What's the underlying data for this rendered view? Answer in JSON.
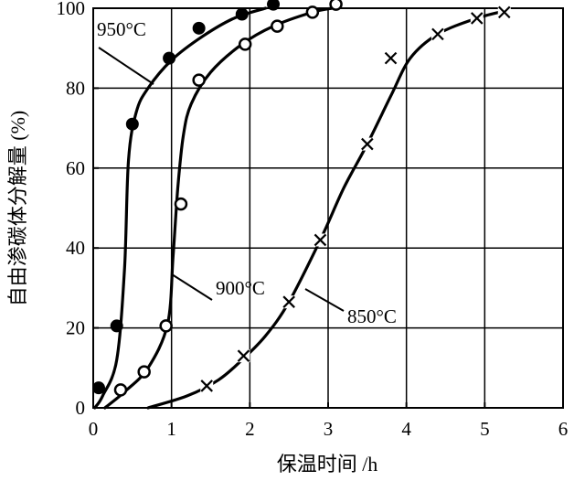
{
  "chart_data": {
    "type": "line",
    "xlabel": "保温时间 /h",
    "ylabel": "自由渗碳体分解量 (%)",
    "xlim": [
      0,
      6
    ],
    "ylim": [
      0,
      100
    ],
    "xticks": [
      "0",
      "1",
      "2",
      "3",
      "4",
      "5",
      "6"
    ],
    "yticks": [
      "0",
      "20",
      "40",
      "60",
      "80",
      "100"
    ],
    "grid": true,
    "series": [
      {
        "name": "950°C",
        "marker": "filled-circle",
        "points": [
          [
            0.07,
            5
          ],
          [
            0.3,
            20.5
          ],
          [
            0.5,
            71
          ],
          [
            0.97,
            87.5
          ],
          [
            1.35,
            95
          ],
          [
            1.9,
            98.5
          ],
          [
            2.3,
            101
          ]
        ],
        "curve": [
          [
            0.02,
            0
          ],
          [
            0.12,
            3
          ],
          [
            0.3,
            12
          ],
          [
            0.4,
            35
          ],
          [
            0.45,
            62
          ],
          [
            0.55,
            74
          ],
          [
            0.7,
            80
          ],
          [
            1.0,
            87
          ],
          [
            1.4,
            93
          ],
          [
            1.8,
            97.5
          ],
          [
            2.2,
            100
          ]
        ]
      },
      {
        "name": "900°C",
        "marker": "open-circle",
        "points": [
          [
            0.35,
            4.5
          ],
          [
            0.65,
            9
          ],
          [
            0.93,
            20.5
          ],
          [
            1.35,
            82
          ],
          [
            1.12,
            51
          ],
          [
            1.94,
            91
          ],
          [
            2.35,
            95.5
          ],
          [
            2.8,
            99
          ],
          [
            3.1,
            101
          ]
        ],
        "curve": [
          [
            0.15,
            0
          ],
          [
            0.4,
            4
          ],
          [
            0.7,
            10
          ],
          [
            0.95,
            21
          ],
          [
            1.02,
            38
          ],
          [
            1.08,
            55
          ],
          [
            1.15,
            68
          ],
          [
            1.25,
            76
          ],
          [
            1.5,
            84
          ],
          [
            1.9,
            91
          ],
          [
            2.3,
            95.5
          ],
          [
            2.8,
            99
          ],
          [
            3.05,
            100
          ]
        ]
      },
      {
        "name": "850°C",
        "marker": "x",
        "points": [
          [
            1.45,
            5.5
          ],
          [
            1.92,
            13
          ],
          [
            2.5,
            26.5
          ],
          [
            2.9,
            42
          ],
          [
            3.5,
            66
          ],
          [
            3.8,
            87.5
          ],
          [
            4.4,
            93.5
          ],
          [
            4.9,
            97.5
          ],
          [
            5.25,
            99
          ]
        ],
        "curve": [
          [
            0.7,
            0
          ],
          [
            1.2,
            3
          ],
          [
            1.6,
            7
          ],
          [
            1.9,
            12
          ],
          [
            2.2,
            18
          ],
          [
            2.5,
            26.5
          ],
          [
            2.9,
            42
          ],
          [
            3.2,
            55
          ],
          [
            3.5,
            66
          ],
          [
            3.8,
            78
          ],
          [
            4.05,
            87.5
          ],
          [
            4.4,
            93.5
          ],
          [
            4.9,
            97.5
          ],
          [
            5.3,
            99.5
          ]
        ]
      }
    ]
  }
}
